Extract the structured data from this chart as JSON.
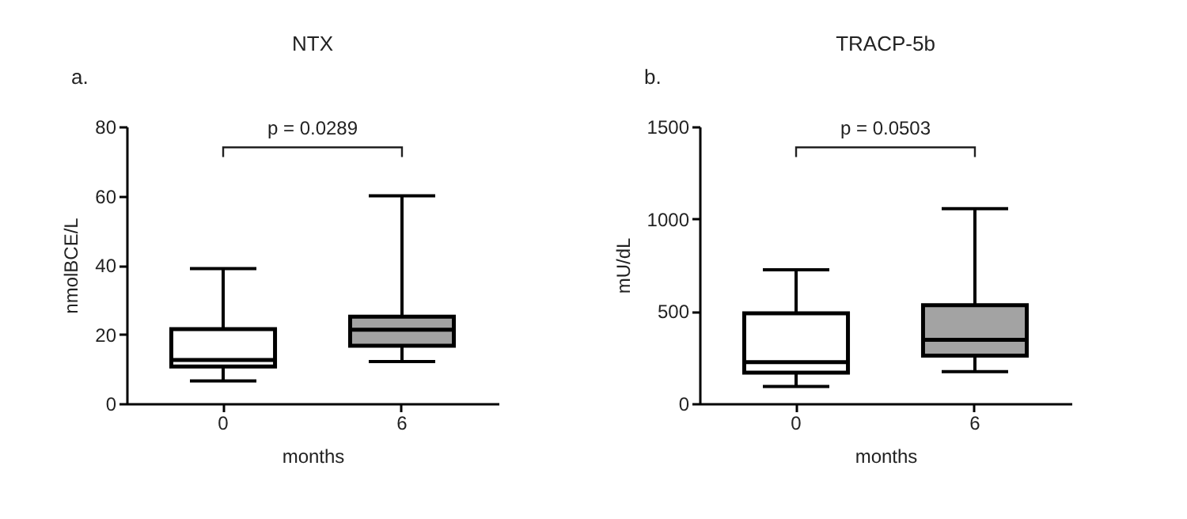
{
  "chart_data": [
    {
      "type": "box",
      "title": "NTX",
      "xlabel": "months",
      "ylabel": "nmolBCE/L",
      "categories": [
        "0",
        "6"
      ],
      "colors": [
        "#ffffff",
        "#a3a3a3"
      ],
      "ylim": [
        0,
        80
      ],
      "yticks": [
        0,
        20,
        40,
        60,
        80
      ],
      "grid": false,
      "legend": false,
      "annotations": [
        "a.",
        "p = 0.0289"
      ],
      "boxes": [
        {
          "low": 6.5,
          "q1": 10.7,
          "median": 12.6,
          "q3": 21.5,
          "high": 39
        },
        {
          "low": 12.1,
          "q1": 16.7,
          "median": 21.3,
          "q3": 25.1,
          "high": 60
        }
      ]
    },
    {
      "type": "box",
      "title": "TRACP-5b",
      "xlabel": "months",
      "ylabel": "mU/dL",
      "categories": [
        "0",
        "6"
      ],
      "colors": [
        "#ffffff",
        "#a3a3a3"
      ],
      "ylim": [
        0,
        1500
      ],
      "yticks": [
        0,
        500,
        1000,
        1500
      ],
      "grid": false,
      "legend": false,
      "annotations": [
        "b.",
        "p = 0.0503"
      ],
      "boxes": [
        {
          "low": 92,
          "q1": 167,
          "median": 224,
          "q3": 489,
          "high": 724
        },
        {
          "low": 172,
          "q1": 259,
          "median": 345,
          "q3": 532,
          "high": 1055
        }
      ]
    }
  ]
}
